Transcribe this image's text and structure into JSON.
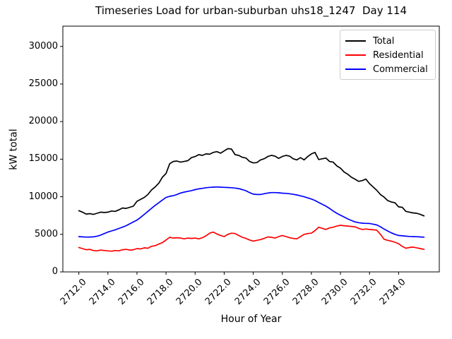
{
  "title": "Timeseries Load for urban-suburban uhs18_1247  Day 114",
  "chart_data": {
    "type": "line",
    "title": "Timeseries Load for urban-suburban uhs18_1247  Day 114",
    "xlabel": "Hour of Year",
    "ylabel": "kW total",
    "xlim": [
      2710.9,
      2736.8
    ],
    "ylim": [
      0,
      32700
    ],
    "x_tick_values": [
      2712,
      2714,
      2716,
      2718,
      2720,
      2722,
      2724,
      2726,
      2728,
      2730,
      2732,
      2734
    ],
    "x_tick_labels": [
      "2712.0",
      "2714.0",
      "2716.0",
      "2718.0",
      "2720.0",
      "2722.0",
      "2724.0",
      "2726.0",
      "2728.0",
      "2730.0",
      "2732.0",
      "2734.0"
    ],
    "y_tick_values": [
      0,
      5000,
      10000,
      15000,
      20000,
      25000,
      30000
    ],
    "y_tick_labels": [
      "0",
      "5000",
      "10000",
      "15000",
      "20000",
      "25000",
      "30000"
    ],
    "grid": false,
    "legend_position": "upper right",
    "x_start": 2712.0,
    "x_step": 0.25,
    "series": [
      {
        "name": "Total",
        "color": "#000000",
        "values": [
          8150,
          7950,
          7700,
          7750,
          7650,
          7800,
          7950,
          7900,
          7950,
          8100,
          8050,
          8250,
          8500,
          8450,
          8600,
          8750,
          9400,
          9650,
          9900,
          10300,
          10900,
          11300,
          11800,
          12600,
          13100,
          14400,
          14700,
          14750,
          14600,
          14700,
          14800,
          15200,
          15350,
          15600,
          15500,
          15700,
          15650,
          15900,
          16000,
          15800,
          16100,
          16400,
          16350,
          15600,
          15500,
          15250,
          15150,
          14700,
          14500,
          14550,
          14900,
          15050,
          15350,
          15500,
          15400,
          15100,
          15350,
          15500,
          15400,
          15050,
          14900,
          15200,
          14900,
          15350,
          15700,
          15900,
          14950,
          15050,
          15150,
          14700,
          14600,
          14100,
          13800,
          13300,
          13000,
          12600,
          12350,
          12050,
          12150,
          12350,
          11750,
          11300,
          10850,
          10300,
          9950,
          9500,
          9300,
          9200,
          8650,
          8600,
          8050,
          7950,
          7850,
          7800,
          7650,
          7450
        ]
      },
      {
        "name": "Residential",
        "color": "#ff0000",
        "values": [
          3250,
          3100,
          2950,
          3000,
          2850,
          2800,
          2900,
          2850,
          2800,
          2750,
          2850,
          2800,
          2950,
          3000,
          2900,
          2950,
          3100,
          3050,
          3200,
          3150,
          3400,
          3500,
          3700,
          3900,
          4250,
          4600,
          4500,
          4550,
          4500,
          4400,
          4500,
          4450,
          4500,
          4400,
          4550,
          4800,
          5150,
          5300,
          5050,
          4850,
          4700,
          5000,
          5150,
          5100,
          4850,
          4600,
          4450,
          4250,
          4100,
          4200,
          4300,
          4450,
          4650,
          4600,
          4500,
          4700,
          4850,
          4700,
          4550,
          4450,
          4400,
          4700,
          5000,
          5100,
          5150,
          5500,
          5950,
          5800,
          5650,
          5850,
          5950,
          6100,
          6200,
          6150,
          6100,
          6050,
          6000,
          5800,
          5650,
          5700,
          5650,
          5600,
          5550,
          5000,
          4350,
          4200,
          4100,
          3950,
          3750,
          3400,
          3150,
          3250,
          3300,
          3200,
          3100,
          3000
        ]
      },
      {
        "name": "Commercial",
        "color": "#0000ff",
        "values": [
          4700,
          4660,
          4630,
          4640,
          4660,
          4750,
          4900,
          5100,
          5300,
          5450,
          5600,
          5780,
          5950,
          6150,
          6400,
          6650,
          6900,
          7250,
          7650,
          8050,
          8460,
          8850,
          9200,
          9570,
          9900,
          10050,
          10150,
          10300,
          10500,
          10620,
          10720,
          10820,
          10950,
          11050,
          11120,
          11200,
          11250,
          11280,
          11300,
          11280,
          11250,
          11230,
          11200,
          11150,
          11080,
          10950,
          10800,
          10550,
          10350,
          10300,
          10300,
          10400,
          10500,
          10550,
          10550,
          10520,
          10480,
          10450,
          10400,
          10320,
          10240,
          10120,
          10000,
          9850,
          9700,
          9500,
          9250,
          9000,
          8750,
          8450,
          8100,
          7800,
          7550,
          7300,
          7050,
          6850,
          6650,
          6550,
          6480,
          6460,
          6450,
          6350,
          6250,
          6000,
          5700,
          5450,
          5200,
          5000,
          4850,
          4800,
          4750,
          4720,
          4700,
          4680,
          4650,
          4620
        ]
      }
    ]
  }
}
